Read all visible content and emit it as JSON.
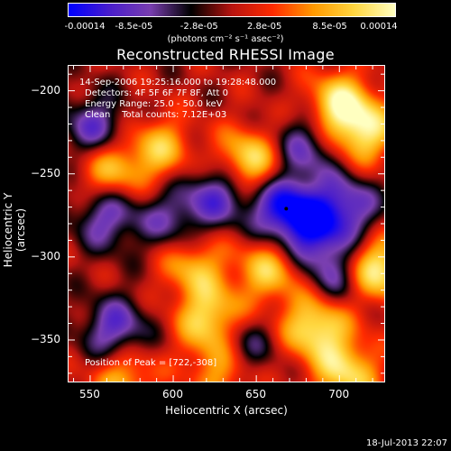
{
  "colorbar": {
    "stops": [
      "#0000ff",
      "#4a1ecc",
      "#7a3fb0",
      "#000000",
      "#b81410",
      "#ff2b00",
      "#ff9a00",
      "#ffd740",
      "#ffffc0"
    ],
    "tick_labels": [
      "-0.00014",
      "-8.5e-05",
      "-2.8e-05",
      "2.8e-05",
      "8.5e-05",
      "0.00014"
    ],
    "units": "(photons cm⁻² s⁻¹ asec⁻²)"
  },
  "header": {
    "title": "Reconstructed RHESSI Image"
  },
  "annotations": {
    "time": "14-Sep-2006 19:25:16.000 to 19:28:48.000",
    "detectors": "Detectors: 4F 5F 6F 7F 8F, Att 0",
    "energy": "Energy Range: 25.0 - 50.0 keV",
    "clean": "Clean    Total counts: 7.12E+03",
    "peak": "Position of Peak = [722,-308]"
  },
  "footer": {
    "timestamp": "18-Jul-2013 22:07"
  },
  "chart_data": {
    "type": "heatmap",
    "title": "Reconstructed RHESSI Image",
    "xlabel": "Heliocentric X (arcsec)",
    "ylabel": "Heliocentric Y (arcsec)",
    "xlim": [
      537,
      727
    ],
    "ylim": [
      -375,
      -185
    ],
    "xticks": [
      550,
      600,
      650,
      700
    ],
    "yticks": [
      -200,
      -250,
      -300,
      -350
    ],
    "value_range": [
      -0.00014,
      0.00014
    ],
    "units": "photons cm^-2 s^-1 asec^-2",
    "peak": [
      722,
      -308
    ],
    "minimum_marker": [
      668,
      -271
    ],
    "bright_regions": [
      {
        "x": 700,
        "y": -208,
        "v": 0.00012
      },
      {
        "x": 645,
        "y": -243,
        "v": 0.00013
      },
      {
        "x": 715,
        "y": -225,
        "v": 0.00011
      },
      {
        "x": 722,
        "y": -308,
        "v": 0.00014
      },
      {
        "x": 658,
        "y": -308,
        "v": 0.0001
      },
      {
        "x": 686,
        "y": -342,
        "v": 0.00013
      },
      {
        "x": 623,
        "y": -338,
        "v": 0.00012
      },
      {
        "x": 562,
        "y": -248,
        "v": 0.0001
      },
      {
        "x": 592,
        "y": -235,
        "v": 9e-05
      },
      {
        "x": 612,
        "y": -305,
        "v": 9e-05
      },
      {
        "x": 630,
        "y": -367,
        "v": 0.0001
      },
      {
        "x": 705,
        "y": -370,
        "v": 0.00011
      },
      {
        "x": 570,
        "y": -372,
        "v": 9e-05
      }
    ],
    "dark_regions": [
      {
        "x": 668,
        "y": -271,
        "v": -0.00014
      },
      {
        "x": 628,
        "y": -261,
        "v": -0.0001
      },
      {
        "x": 553,
        "y": -223,
        "v": -9e-05
      },
      {
        "x": 560,
        "y": -275,
        "v": -9e-05
      },
      {
        "x": 565,
        "y": -345,
        "v": -0.0001
      },
      {
        "x": 685,
        "y": -288,
        "v": -9e-05
      },
      {
        "x": 704,
        "y": -270,
        "v": -0.0001
      },
      {
        "x": 700,
        "y": -313,
        "v": -8e-05
      },
      {
        "x": 640,
        "y": -355,
        "v": -9e-05
      },
      {
        "x": 680,
        "y": -233,
        "v": -8e-05
      },
      {
        "x": 600,
        "y": -278,
        "v": -7e-05
      }
    ]
  }
}
